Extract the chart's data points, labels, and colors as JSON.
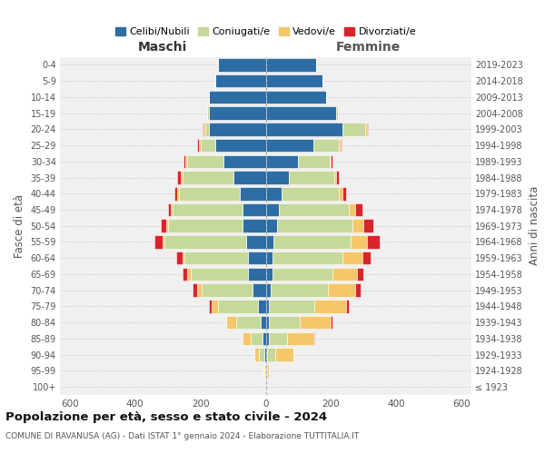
{
  "age_groups": [
    "100+",
    "95-99",
    "90-94",
    "85-89",
    "80-84",
    "75-79",
    "70-74",
    "65-69",
    "60-64",
    "55-59",
    "50-54",
    "45-49",
    "40-44",
    "35-39",
    "30-34",
    "25-29",
    "20-24",
    "15-19",
    "10-14",
    "5-9",
    "0-4"
  ],
  "birth_years": [
    "≤ 1923",
    "1924-1928",
    "1929-1933",
    "1934-1938",
    "1939-1943",
    "1944-1948",
    "1949-1953",
    "1954-1958",
    "1959-1963",
    "1964-1968",
    "1969-1973",
    "1974-1978",
    "1979-1983",
    "1984-1988",
    "1989-1993",
    "1994-1998",
    "1999-2003",
    "2004-2008",
    "2009-2013",
    "2014-2018",
    "2019-2023"
  ],
  "maschi": {
    "celibi": [
      0,
      2,
      5,
      10,
      15,
      25,
      40,
      55,
      55,
      60,
      70,
      70,
      80,
      100,
      130,
      155,
      175,
      175,
      175,
      155,
      145
    ],
    "coniugati": [
      0,
      2,
      15,
      35,
      75,
      120,
      155,
      175,
      195,
      250,
      230,
      215,
      185,
      155,
      110,
      45,
      10,
      5,
      0,
      0,
      0
    ],
    "vedovi": [
      0,
      2,
      15,
      25,
      30,
      20,
      15,
      10,
      5,
      5,
      5,
      5,
      5,
      5,
      5,
      5,
      5,
      0,
      0,
      0,
      0
    ],
    "divorziati": [
      0,
      0,
      0,
      0,
      0,
      10,
      15,
      15,
      20,
      25,
      15,
      10,
      10,
      10,
      8,
      5,
      3,
      0,
      0,
      0,
      0
    ]
  },
  "femmine": {
    "celibi": [
      0,
      2,
      5,
      10,
      10,
      10,
      15,
      20,
      20,
      25,
      35,
      40,
      50,
      70,
      100,
      145,
      235,
      215,
      185,
      175,
      155
    ],
    "coniugati": [
      0,
      3,
      25,
      55,
      95,
      140,
      175,
      185,
      215,
      235,
      230,
      215,
      175,
      140,
      95,
      80,
      70,
      5,
      0,
      0,
      0
    ],
    "vedovi": [
      2,
      5,
      55,
      80,
      95,
      95,
      85,
      75,
      60,
      50,
      35,
      20,
      10,
      5,
      5,
      5,
      5,
      0,
      0,
      0,
      0
    ],
    "divorziati": [
      0,
      0,
      0,
      5,
      5,
      10,
      15,
      20,
      25,
      40,
      30,
      20,
      10,
      8,
      5,
      3,
      2,
      0,
      0,
      0,
      0
    ]
  },
  "colors": {
    "celibi": "#2e6da4",
    "coniugati": "#c5d99a",
    "vedovi": "#f5c76a",
    "divorziati": "#d9242c"
  },
  "xlim": 630,
  "title": "Popolazione per età, sesso e stato civile - 2024",
  "subtitle": "COMUNE DI RAVANUSA (AG) - Dati ISTAT 1° gennaio 2024 - Elaborazione TUTTITALIA.IT",
  "ylabel_left": "Fasce di età",
  "ylabel_right": "Anni di nascita",
  "xlabel_maschi": "Maschi",
  "xlabel_femmine": "Femmine",
  "legend_labels": [
    "Celibi/Nubili",
    "Coniugati/e",
    "Vedovi/e",
    "Divorziati/e"
  ],
  "bg_color": "#f0f0f0"
}
